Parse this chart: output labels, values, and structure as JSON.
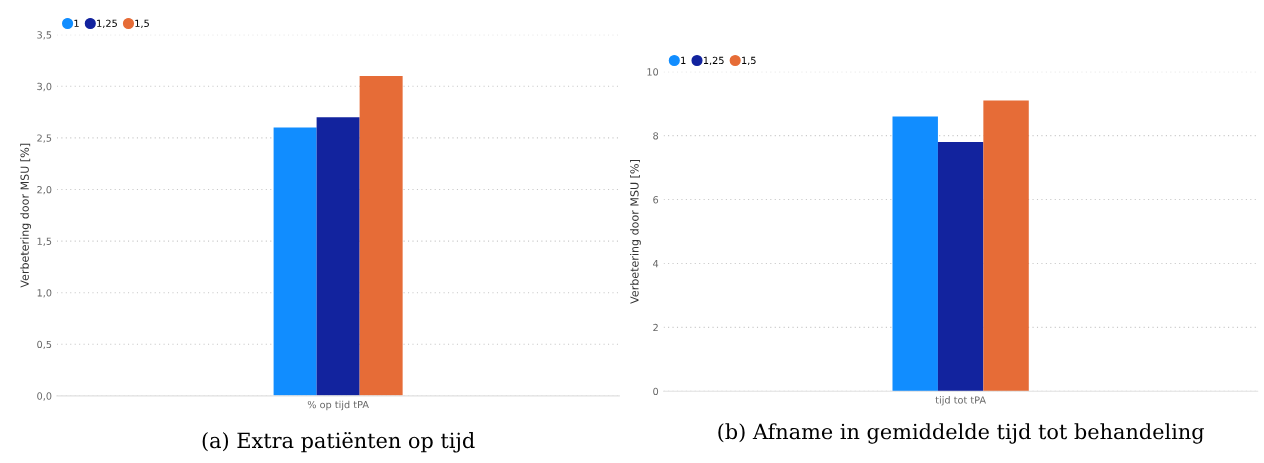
{
  "chart_data": [
    {
      "type": "bar",
      "title": "(a) Extra patiënten op tijd",
      "ylabel": "Verbetering door MSU [%]",
      "categories": [
        "% op tijd tPA"
      ],
      "series": [
        {
          "name": "1",
          "color": "#118dff",
          "values": [
            2.6
          ]
        },
        {
          "name": "1,25",
          "color": "#12239e",
          "values": [
            2.7
          ]
        },
        {
          "name": "1,5",
          "color": "#e66c37",
          "values": [
            3.1
          ]
        }
      ],
      "ylim": [
        0,
        3.5
      ],
      "yticks": [
        {
          "value": 0,
          "label": "0,0"
        },
        {
          "value": 0.5,
          "label": "0,5"
        },
        {
          "value": 1,
          "label": "1,0"
        },
        {
          "value": 1.5,
          "label": "1,5"
        },
        {
          "value": 2,
          "label": "2,0"
        },
        {
          "value": 2.5,
          "label": "2,5"
        },
        {
          "value": 3,
          "label": "3,0"
        },
        {
          "value": 3.5,
          "label": "3,5"
        }
      ],
      "grid": "y",
      "legend": "top left"
    },
    {
      "type": "bar",
      "title": "(b) Afname in gemiddelde tijd tot behandeling",
      "ylabel": "Verbetering door MSU [%]",
      "categories": [
        "tijd tot tPA"
      ],
      "series": [
        {
          "name": "1",
          "color": "#118dff",
          "values": [
            8.6
          ]
        },
        {
          "name": "1,25",
          "color": "#12239e",
          "values": [
            7.8
          ]
        },
        {
          "name": "1,5",
          "color": "#e66c37",
          "values": [
            9.1
          ]
        }
      ],
      "ylim": [
        0,
        10
      ],
      "yticks": [
        0,
        2,
        4,
        6,
        8,
        10
      ],
      "grid": "y",
      "legend": "top left"
    }
  ]
}
